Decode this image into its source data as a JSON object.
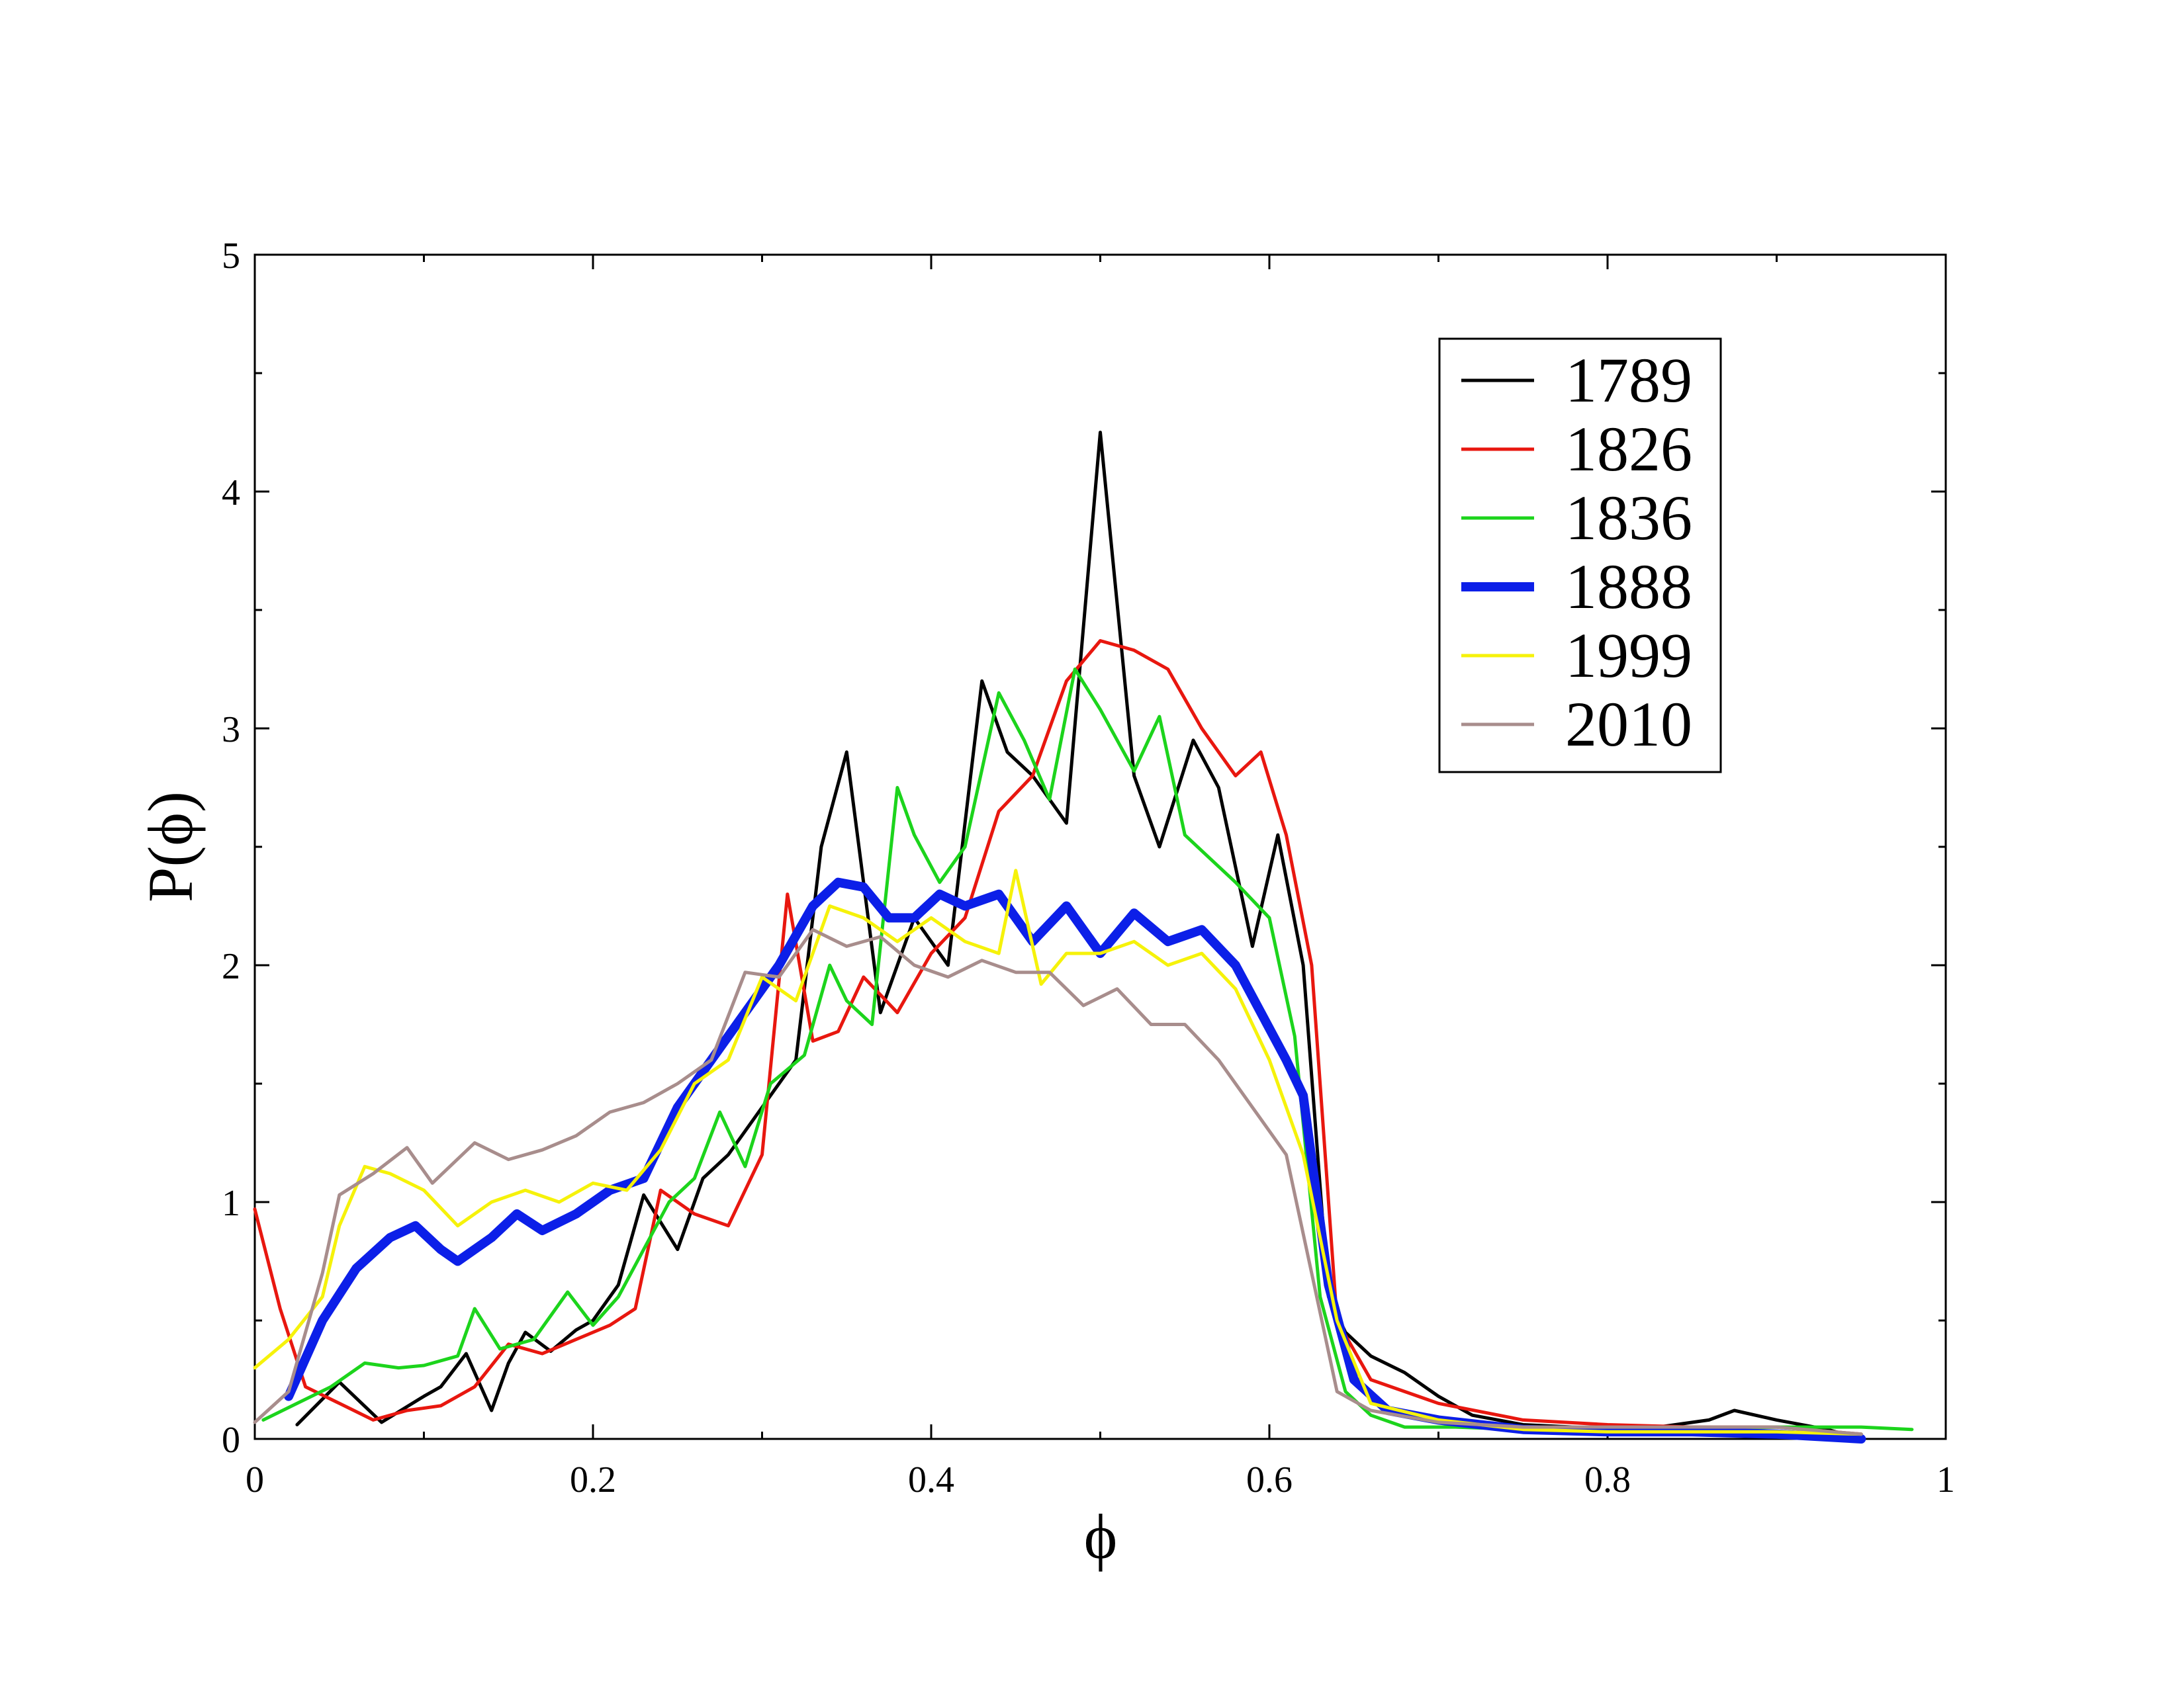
{
  "chart_data": {
    "type": "line",
    "xlabel": "ϕ",
    "ylabel": "P(ϕ)",
    "xlim": [
      0,
      1
    ],
    "ylim": [
      0,
      5
    ],
    "xticks": [
      0,
      0.2,
      0.4,
      0.6,
      0.8,
      1
    ],
    "xtick_labels": [
      "0",
      "0.2",
      "0.4",
      "0.6",
      "0.8",
      "1"
    ],
    "yticks": [
      0,
      1,
      2,
      3,
      4,
      5
    ],
    "ytick_labels": [
      "0",
      "1",
      "2",
      "3",
      "4",
      "5"
    ],
    "grid": false,
    "legend_position": "top-right",
    "series": [
      {
        "name": "1789",
        "color": "#000000",
        "width": 5,
        "x": [
          0.025,
          0.05,
          0.075,
          0.1,
          0.11,
          0.125,
          0.14,
          0.15,
          0.16,
          0.175,
          0.19,
          0.2,
          0.215,
          0.23,
          0.25,
          0.265,
          0.28,
          0.3,
          0.32,
          0.335,
          0.35,
          0.37,
          0.39,
          0.41,
          0.43,
          0.445,
          0.46,
          0.48,
          0.5,
          0.52,
          0.535,
          0.555,
          0.57,
          0.59,
          0.605,
          0.62,
          0.635,
          0.645,
          0.66,
          0.68,
          0.7,
          0.72,
          0.75,
          0.78,
          0.8,
          0.83,
          0.86,
          0.875,
          0.9,
          0.93,
          0.95
        ],
        "y": [
          0.06,
          0.24,
          0.07,
          0.18,
          0.22,
          0.36,
          0.12,
          0.32,
          0.45,
          0.37,
          0.46,
          0.5,
          0.65,
          1.03,
          0.8,
          1.1,
          1.2,
          1.4,
          1.6,
          2.5,
          2.9,
          1.8,
          2.2,
          2.0,
          3.2,
          2.9,
          2.8,
          2.6,
          4.25,
          2.8,
          2.5,
          2.95,
          2.75,
          2.08,
          2.55,
          2.0,
          0.6,
          0.45,
          0.35,
          0.28,
          0.18,
          0.1,
          0.06,
          0.05,
          0.04,
          0.05,
          0.08,
          0.12,
          0.08,
          0.04,
          0.0
        ]
      },
      {
        "name": "1826",
        "color": "#e8170f",
        "width": 5,
        "x": [
          0.0,
          0.015,
          0.03,
          0.05,
          0.07,
          0.09,
          0.11,
          0.13,
          0.15,
          0.17,
          0.19,
          0.21,
          0.225,
          0.24,
          0.26,
          0.28,
          0.3,
          0.315,
          0.33,
          0.345,
          0.36,
          0.38,
          0.4,
          0.42,
          0.44,
          0.46,
          0.48,
          0.5,
          0.52,
          0.54,
          0.56,
          0.58,
          0.595,
          0.61,
          0.625,
          0.64,
          0.66,
          0.7,
          0.75,
          0.8,
          0.85,
          0.9,
          0.95
        ],
        "y": [
          0.97,
          0.55,
          0.22,
          0.15,
          0.08,
          0.12,
          0.14,
          0.22,
          0.4,
          0.36,
          0.42,
          0.48,
          0.55,
          1.05,
          0.95,
          0.9,
          1.2,
          2.3,
          1.68,
          1.72,
          1.95,
          1.8,
          2.05,
          2.2,
          2.65,
          2.8,
          3.2,
          3.37,
          3.33,
          3.25,
          3.0,
          2.8,
          2.9,
          2.55,
          2.0,
          0.5,
          0.25,
          0.15,
          0.08,
          0.06,
          0.05,
          0.05,
          0.02
        ]
      },
      {
        "name": "1836",
        "color": "#1cd41c",
        "width": 5,
        "x": [
          0.005,
          0.025,
          0.045,
          0.065,
          0.085,
          0.1,
          0.12,
          0.13,
          0.145,
          0.165,
          0.185,
          0.2,
          0.215,
          0.23,
          0.245,
          0.26,
          0.275,
          0.29,
          0.305,
          0.325,
          0.34,
          0.35,
          0.365,
          0.38,
          0.39,
          0.405,
          0.42,
          0.44,
          0.455,
          0.47,
          0.485,
          0.5,
          0.52,
          0.535,
          0.55,
          0.565,
          0.58,
          0.6,
          0.615,
          0.63,
          0.645,
          0.66,
          0.68,
          0.71,
          0.75,
          0.8,
          0.85,
          0.9,
          0.95,
          0.98
        ],
        "y": [
          0.08,
          0.15,
          0.22,
          0.32,
          0.3,
          0.31,
          0.35,
          0.55,
          0.38,
          0.42,
          0.62,
          0.48,
          0.6,
          0.8,
          1.0,
          1.1,
          1.38,
          1.15,
          1.5,
          1.62,
          2.0,
          1.85,
          1.75,
          2.75,
          2.55,
          2.35,
          2.5,
          3.15,
          2.95,
          2.7,
          3.25,
          3.08,
          2.82,
          3.05,
          2.55,
          2.45,
          2.35,
          2.2,
          1.7,
          0.6,
          0.2,
          0.1,
          0.05,
          0.05,
          0.04,
          0.04,
          0.04,
          0.05,
          0.05,
          0.04
        ]
      },
      {
        "name": "1888",
        "color": "#0c1fe8",
        "width": 14,
        "x": [
          0.02,
          0.04,
          0.06,
          0.08,
          0.095,
          0.11,
          0.12,
          0.14,
          0.155,
          0.17,
          0.19,
          0.21,
          0.23,
          0.25,
          0.27,
          0.29,
          0.31,
          0.33,
          0.345,
          0.36,
          0.375,
          0.39,
          0.405,
          0.42,
          0.44,
          0.46,
          0.48,
          0.5,
          0.52,
          0.54,
          0.56,
          0.58,
          0.595,
          0.61,
          0.62,
          0.635,
          0.65,
          0.67,
          0.7,
          0.75,
          0.8,
          0.85,
          0.9,
          0.95
        ],
        "y": [
          0.18,
          0.5,
          0.72,
          0.85,
          0.9,
          0.8,
          0.75,
          0.85,
          0.95,
          0.88,
          0.95,
          1.05,
          1.1,
          1.4,
          1.6,
          1.8,
          2.0,
          2.25,
          2.35,
          2.33,
          2.2,
          2.2,
          2.3,
          2.25,
          2.3,
          2.1,
          2.25,
          2.05,
          2.22,
          2.1,
          2.15,
          2.0,
          1.8,
          1.6,
          1.45,
          0.65,
          0.25,
          0.12,
          0.08,
          0.04,
          0.03,
          0.03,
          0.02,
          0.0
        ]
      },
      {
        "name": "1999",
        "color": "#f6f20a",
        "width": 5,
        "x": [
          0.0,
          0.02,
          0.04,
          0.05,
          0.065,
          0.08,
          0.1,
          0.12,
          0.14,
          0.16,
          0.18,
          0.2,
          0.22,
          0.24,
          0.26,
          0.28,
          0.3,
          0.32,
          0.34,
          0.36,
          0.38,
          0.4,
          0.42,
          0.44,
          0.45,
          0.465,
          0.48,
          0.5,
          0.52,
          0.54,
          0.56,
          0.58,
          0.6,
          0.62,
          0.64,
          0.66,
          0.7,
          0.75,
          0.8,
          0.85,
          0.9,
          0.95
        ],
        "y": [
          0.3,
          0.42,
          0.6,
          0.9,
          1.15,
          1.12,
          1.05,
          0.9,
          1.0,
          1.05,
          1.0,
          1.08,
          1.05,
          1.22,
          1.5,
          1.6,
          1.95,
          1.85,
          2.25,
          2.2,
          2.1,
          2.2,
          2.1,
          2.05,
          2.4,
          1.92,
          2.05,
          2.05,
          2.1,
          2.0,
          2.05,
          1.9,
          1.6,
          1.2,
          0.5,
          0.15,
          0.08,
          0.04,
          0.03,
          0.03,
          0.03,
          0.02
        ]
      },
      {
        "name": "2010",
        "color": "#a88d8c",
        "width": 5,
        "x": [
          0.0,
          0.02,
          0.04,
          0.05,
          0.07,
          0.09,
          0.105,
          0.13,
          0.15,
          0.17,
          0.19,
          0.21,
          0.23,
          0.25,
          0.27,
          0.29,
          0.31,
          0.33,
          0.35,
          0.37,
          0.39,
          0.41,
          0.43,
          0.45,
          0.47,
          0.49,
          0.51,
          0.53,
          0.55,
          0.57,
          0.59,
          0.61,
          0.625,
          0.64,
          0.66,
          0.7,
          0.75,
          0.8,
          0.85,
          0.9,
          0.95
        ],
        "y": [
          0.07,
          0.2,
          0.7,
          1.03,
          1.12,
          1.23,
          1.08,
          1.25,
          1.18,
          1.22,
          1.28,
          1.38,
          1.42,
          1.5,
          1.6,
          1.97,
          1.95,
          2.15,
          2.08,
          2.12,
          2.0,
          1.95,
          2.02,
          1.97,
          1.97,
          1.83,
          1.9,
          1.75,
          1.75,
          1.6,
          1.4,
          1.2,
          0.7,
          0.2,
          0.12,
          0.07,
          0.05,
          0.05,
          0.05,
          0.05,
          0.02
        ]
      }
    ]
  }
}
